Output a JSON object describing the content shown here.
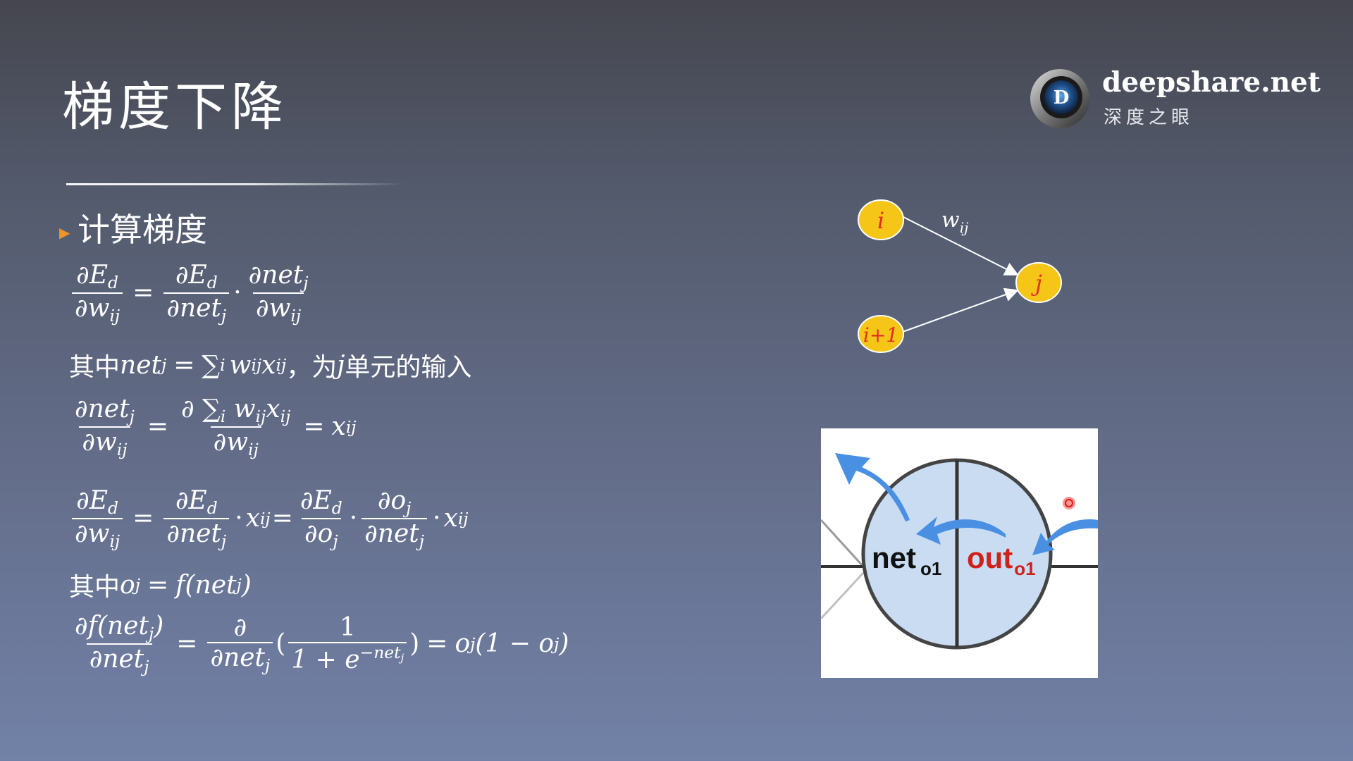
{
  "slide": {
    "title": "梯度下降",
    "section": "计算梯度"
  },
  "logo": {
    "name": "deepshare.net",
    "subtitle": "深度之眼",
    "mark_letter": "D"
  },
  "equations": {
    "eq1": {
      "lhs_num": "∂E",
      "lhs_num_sub": "d",
      "lhs_den": "∂w",
      "lhs_den_sub": "ij",
      "r1_num": "∂E",
      "r1_num_sub": "d",
      "r1_den": "∂net",
      "r1_den_sub": "j",
      "r2_num": "∂net",
      "r2_num_sub": "j",
      "r2_den": "∂w",
      "r2_den_sub": "ij"
    },
    "line2": {
      "prefix": "其中",
      "formula_a": "net",
      "sub_a": "j",
      "eq": "=",
      "sum": "∑",
      "sum_sub": "i",
      "w": "w",
      "w_sub": "ij",
      "x": "x",
      "x_sub": "ij",
      "comma": "，为",
      "j": "j",
      "suffix": "单元的输入"
    },
    "eq3": {
      "lhs_num": "∂net",
      "lhs_num_sub": "j",
      "lhs_den": "∂w",
      "lhs_den_sub": "ij",
      "mid_num": "∂ ∑",
      "mid_num_sub": "i",
      "mid_num_w": "w",
      "mid_num_w_sub": "ij",
      "mid_num_x": "x",
      "mid_num_x_sub": "ij",
      "mid_den": "∂w",
      "mid_den_sub": "ij",
      "rhs": "x",
      "rhs_sub": "ij"
    },
    "eq4": {
      "a_num": "∂E",
      "a_num_sub": "d",
      "a_den": "∂w",
      "a_den_sub": "ij",
      "b_num": "∂E",
      "b_num_sub": "d",
      "b_den": "∂net",
      "b_den_sub": "j",
      "x1": "x",
      "x1_sub": "ij",
      "c_num": "∂E",
      "c_num_sub": "d",
      "c_den": "∂o",
      "c_den_sub": "j",
      "d_num": "∂o",
      "d_num_sub": "j",
      "d_den": "∂net",
      "d_den_sub": "j",
      "x2": "x",
      "x2_sub": "ij"
    },
    "line5": {
      "prefix": "其中",
      "o": "o",
      "o_sub": "j",
      "eq": "=",
      "f": "f(net",
      "f_sub": "j",
      "close": ")"
    },
    "eq6": {
      "a_num": "∂f(net",
      "a_num_sub": "j",
      "a_num_close": ")",
      "a_den": "∂net",
      "a_den_sub": "j",
      "b_num": "∂",
      "b_den": "∂net",
      "b_den_sub": "j",
      "c_num": "1",
      "c_den": "1 + e",
      "c_den_sup": "−net",
      "c_den_sup_sub": "j",
      "rhs_o": "o",
      "rhs_o_sub": "j",
      "rhs_mid": "(1 − o",
      "rhs_mid_sub": "j",
      "rhs_close": ")"
    }
  },
  "network": {
    "node_i": "i",
    "node_i1": "i+1",
    "node_j": "j",
    "weight_label": "w",
    "weight_sub": "ij",
    "node_color": "#f5c518",
    "node_text_color": "#e0301e"
  },
  "neuron_image": {
    "net_label": "net",
    "net_sub": "o1",
    "out_label": "out",
    "out_sub": "o1",
    "fill_color": "#c9dcf2",
    "arrow_color": "#4a90e2",
    "out_color": "#d0201a"
  }
}
